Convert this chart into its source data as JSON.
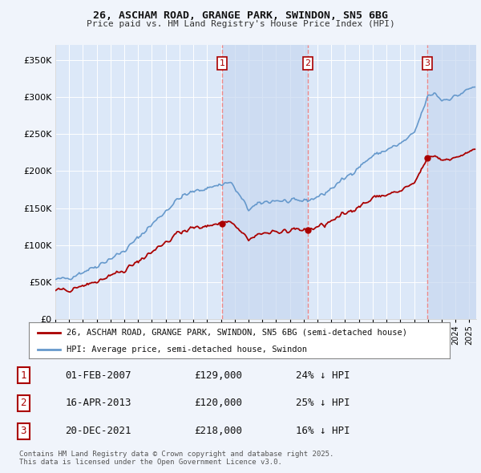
{
  "title_line1": "26, ASCHAM ROAD, GRANGE PARK, SWINDON, SN5 6BG",
  "title_line2": "Price paid vs. HM Land Registry's House Price Index (HPI)",
  "ylim": [
    0,
    370000
  ],
  "yticks": [
    0,
    50000,
    100000,
    150000,
    200000,
    250000,
    300000,
    350000
  ],
  "ytick_labels": [
    "£0",
    "£50K",
    "£100K",
    "£150K",
    "£200K",
    "£250K",
    "£300K",
    "£350K"
  ],
  "background_color": "#f0f4fb",
  "plot_bg_color": "#dce8f8",
  "shade_color": "#c8d8f0",
  "grid_color": "#ffffff",
  "legend_label_red": "26, ASCHAM ROAD, GRANGE PARK, SWINDON, SN5 6BG (semi-detached house)",
  "legend_label_blue": "HPI: Average price, semi-detached house, Swindon",
  "transactions": [
    {
      "date_num": 2007.083,
      "price": 129000,
      "label": "1"
    },
    {
      "date_num": 2013.292,
      "price": 120000,
      "label": "2"
    },
    {
      "date_num": 2021.958,
      "price": 218000,
      "label": "3"
    }
  ],
  "transaction_rows": [
    {
      "num": "1",
      "date": "01-FEB-2007",
      "price": "£129,000",
      "pct": "24% ↓ HPI"
    },
    {
      "num": "2",
      "date": "16-APR-2013",
      "price": "£120,000",
      "pct": "25% ↓ HPI"
    },
    {
      "num": "3",
      "date": "20-DEC-2021",
      "price": "£218,000",
      "pct": "16% ↓ HPI"
    }
  ],
  "footer": "Contains HM Land Registry data © Crown copyright and database right 2025.\nThis data is licensed under the Open Government Licence v3.0.",
  "red_color": "#aa0000",
  "blue_color": "#6699cc",
  "vline_color": "#ee8888",
  "xlim_left": 1995.0,
  "xlim_right": 2025.5
}
